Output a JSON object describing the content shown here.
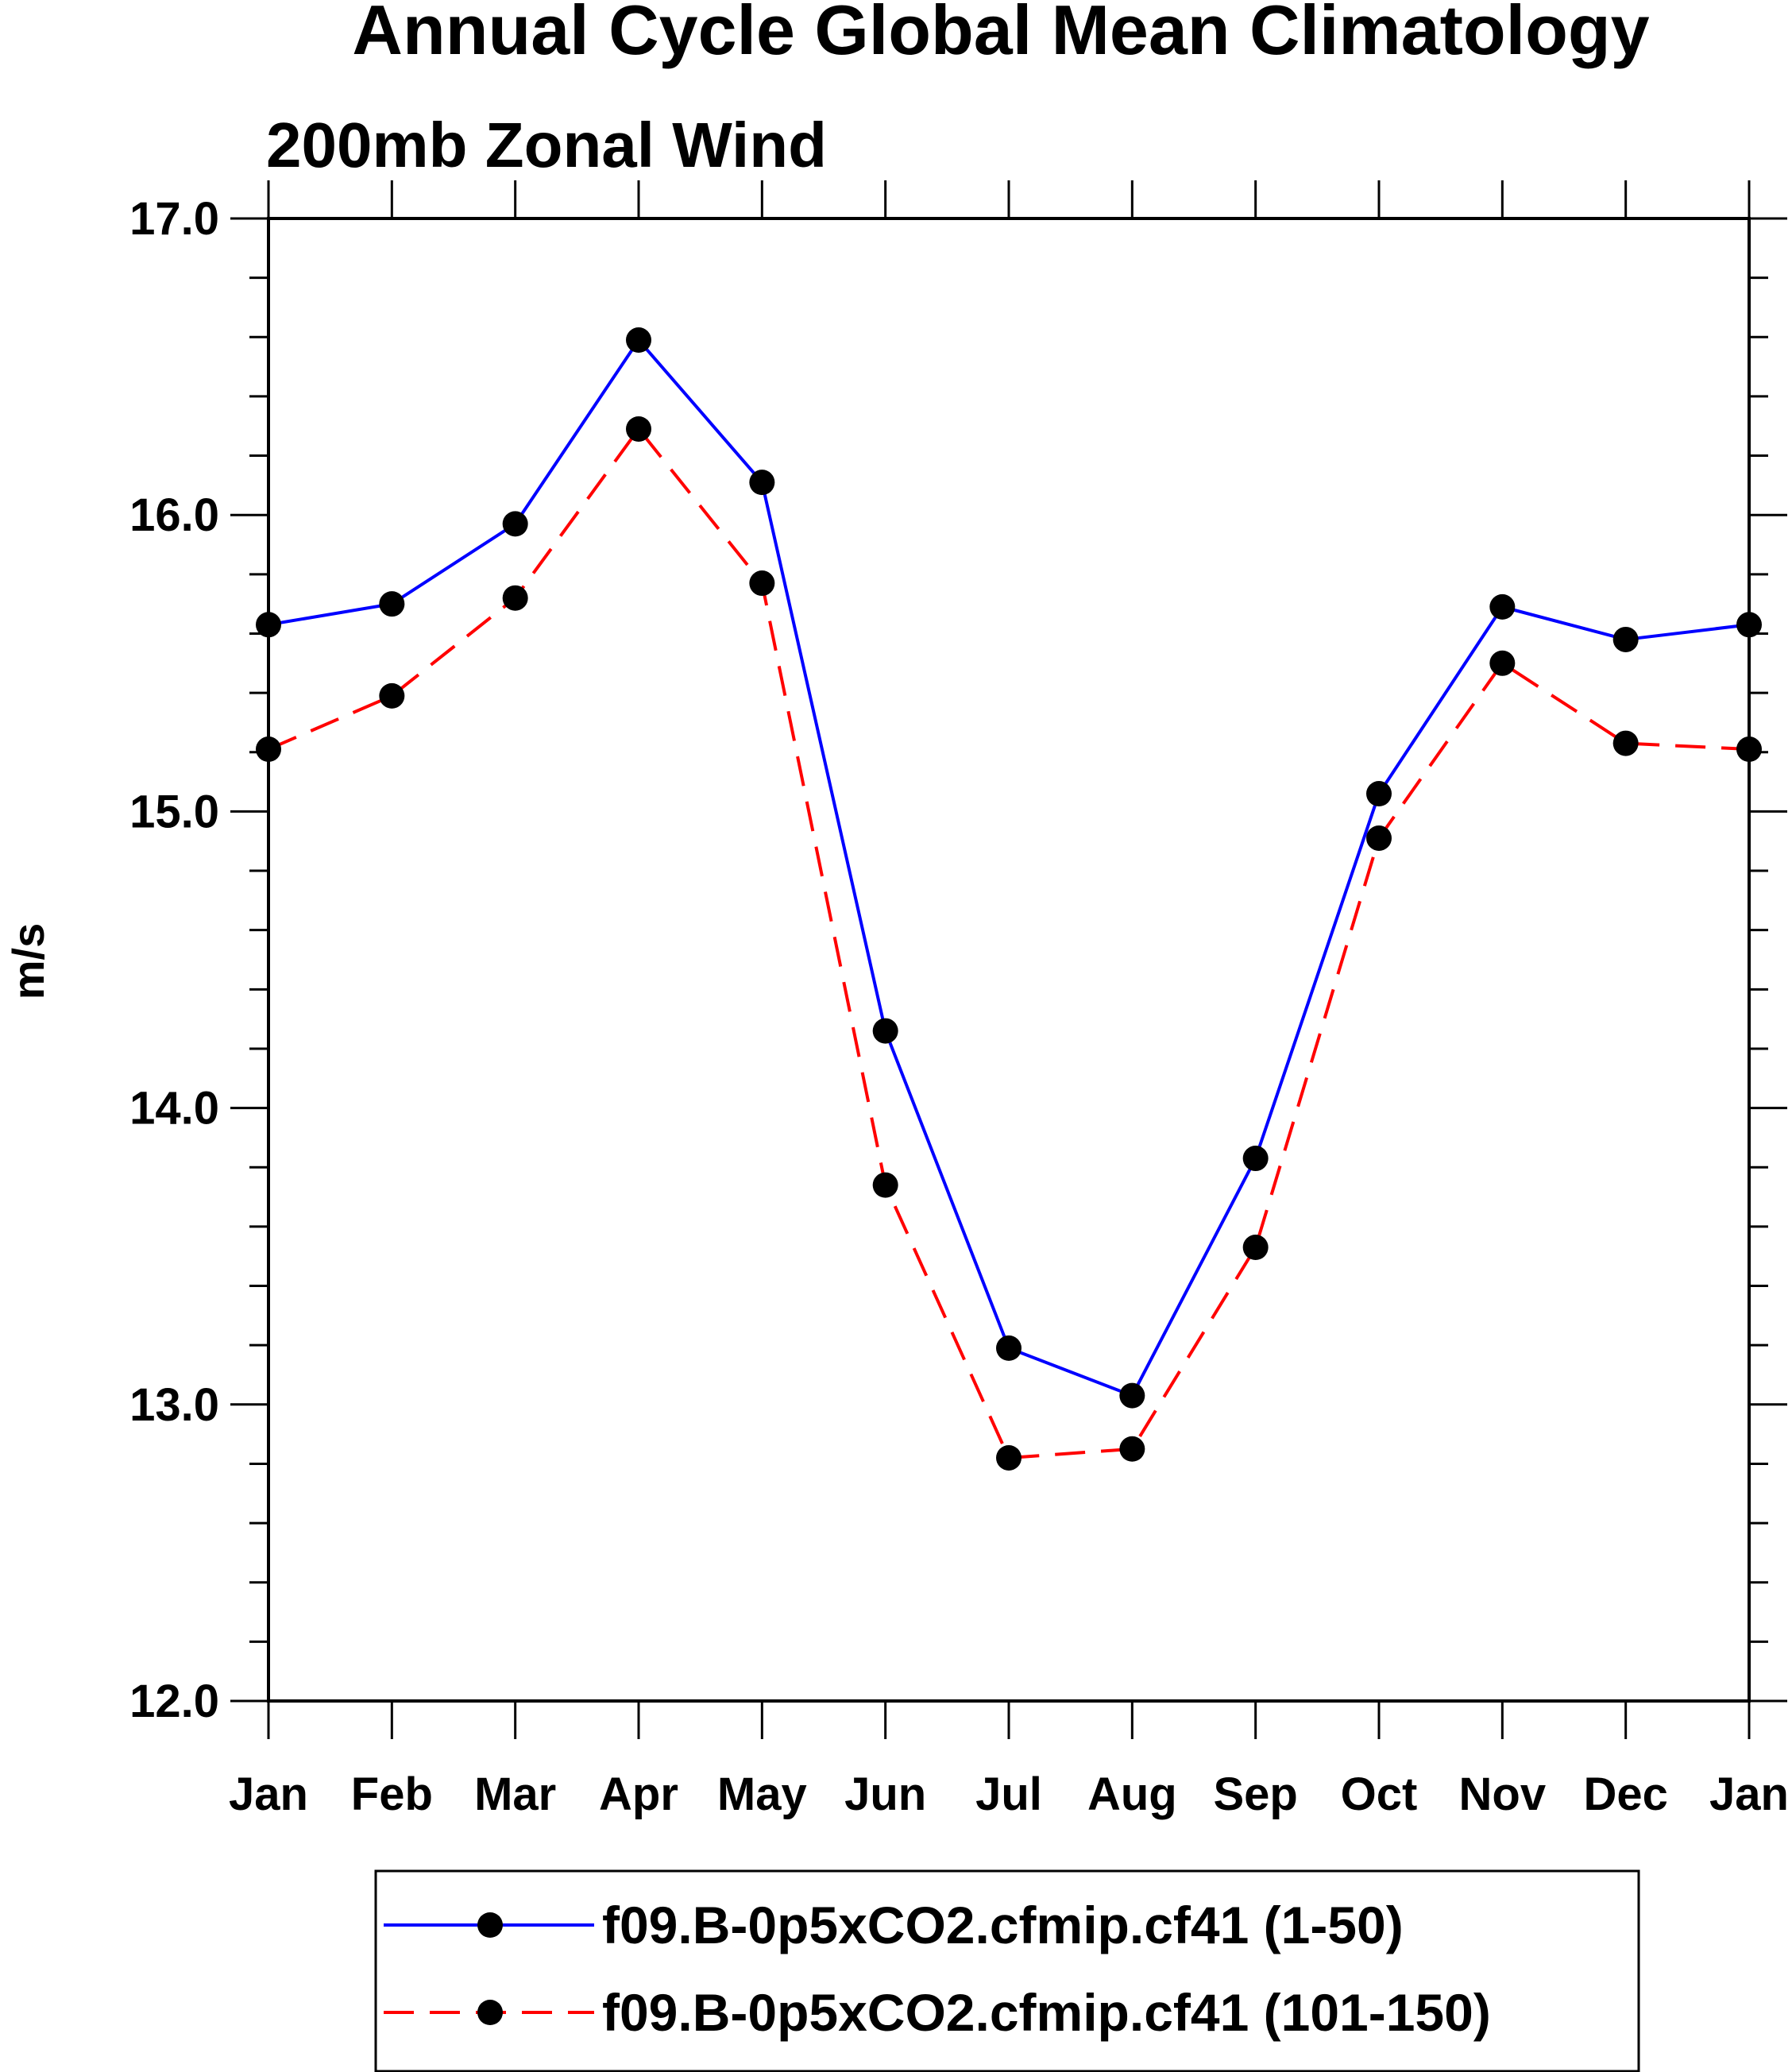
{
  "chart_data": {
    "type": "line",
    "title": "Annual Cycle Global Mean Climatology",
    "subtitle": "200mb Zonal Wind",
    "xlabel": "",
    "ylabel": "m/s",
    "categories": [
      "Jan",
      "Feb",
      "Mar",
      "Apr",
      "May",
      "Jun",
      "Jul",
      "Aug",
      "Sep",
      "Oct",
      "Nov",
      "Dec",
      "Jan"
    ],
    "ylim": [
      12.0,
      17.0
    ],
    "yticks": [
      "12.0",
      "13.0",
      "14.0",
      "15.0",
      "16.0",
      "17.0"
    ],
    "y_minor_step": 0.2,
    "grid": false,
    "legend_position": "bottom",
    "series": [
      {
        "name": "f09.B-0p5xCO2.cfmip.cf41 (1-50)",
        "color": "#0000ff",
        "line_style": "solid",
        "marker": "filled-circle",
        "values": [
          15.63,
          15.7,
          15.97,
          16.59,
          16.11,
          14.26,
          13.19,
          13.03,
          13.83,
          15.06,
          15.69,
          15.58,
          15.63
        ]
      },
      {
        "name": "f09.B-0p5xCO2.cfmip.cf41 (101-150)",
        "color": "#ff0000",
        "line_style": "dashed",
        "marker": "filled-circle",
        "values": [
          15.21,
          15.39,
          15.72,
          16.29,
          15.77,
          13.74,
          12.82,
          12.85,
          13.53,
          14.91,
          15.5,
          15.23,
          15.21
        ]
      }
    ]
  }
}
